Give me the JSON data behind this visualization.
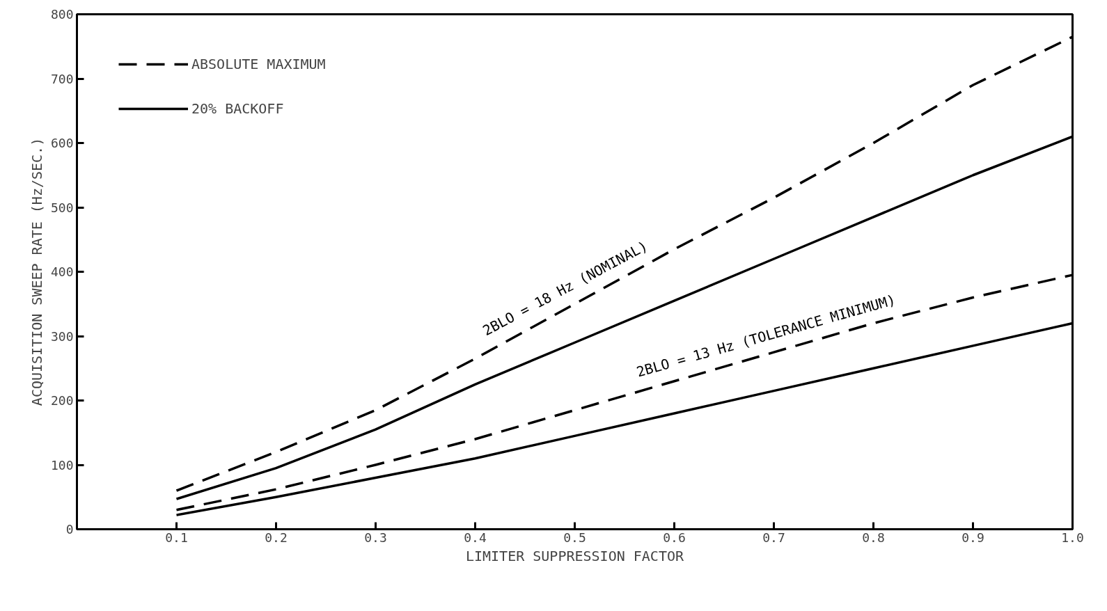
{
  "chart_data": {
    "type": "line",
    "xlabel": "LIMITER SUPPRESSION FACTOR",
    "ylabel": "ACQUISITION SWEEP RATE (Hz/SEC.)",
    "x": [
      0.1,
      0.2,
      0.3,
      0.4,
      0.5,
      0.6,
      0.7,
      0.8,
      0.9,
      1.0
    ],
    "series": [
      {
        "name": "ABSOLUTE MAXIMUM",
        "color": "#000000",
        "line_style": "dashed",
        "values": [
          60,
          120,
          185,
          265,
          350,
          435,
          515,
          600,
          690,
          765
        ]
      },
      {
        "name": "20% BACKOFF",
        "color": "#000000",
        "line_style": "solid",
        "values": [
          47,
          95,
          155,
          225,
          290,
          355,
          420,
          485,
          550,
          610
        ]
      },
      {
        "color": "#000000",
        "line_style": "dashed",
        "values": [
          30,
          62,
          100,
          140,
          185,
          230,
          275,
          320,
          360,
          395
        ]
      },
      {
        "color": "#000000",
        "line_style": "solid",
        "values": [
          22,
          50,
          80,
          110,
          145,
          180,
          215,
          250,
          285,
          320
        ]
      }
    ],
    "annotations": [
      {
        "text": "2BLO = 18 Hz (NOMINAL)",
        "x": 0.5,
        "y": 350
      },
      {
        "text": "2BLO = 13 Hz (TOLERANCE MINIMUM)",
        "x": 0.7,
        "y": 275
      }
    ],
    "xlim": [
      0,
      1.0
    ],
    "ylim": [
      0,
      800
    ],
    "xticks": [
      0.1,
      0.2,
      0.3,
      0.4,
      0.5,
      0.6,
      0.7,
      0.8,
      0.9,
      {
        "value": 1.0,
        "label": "1.0"
      }
    ],
    "yticks": [
      0,
      100,
      200,
      300,
      400,
      500,
      600,
      700,
      800
    ],
    "grid": false,
    "legend": "top left",
    "marker": "none"
  }
}
